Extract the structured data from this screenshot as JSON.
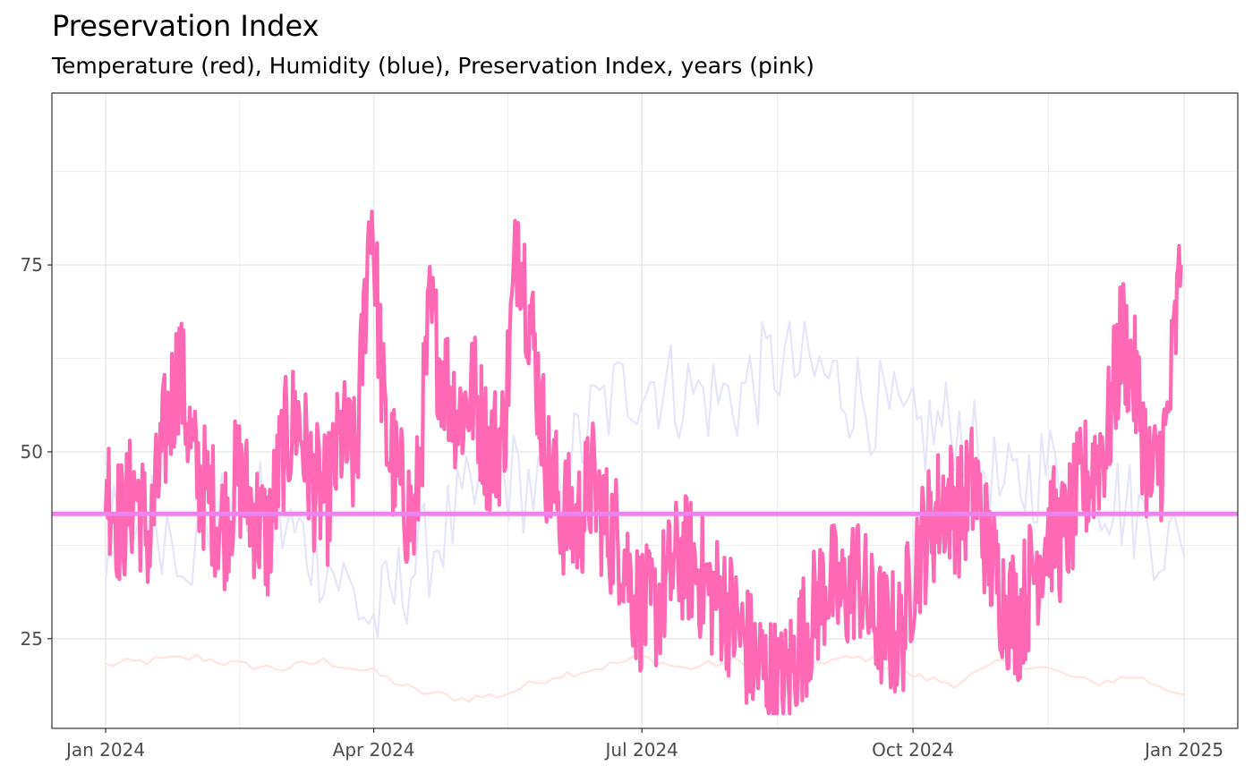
{
  "chart_data": {
    "type": "line",
    "title": "Preservation Index",
    "subtitle": "Temperature (red), Humidity (blue), Preservation Index, years (pink)",
    "xlabel": "",
    "ylabel": "",
    "xlim": [
      "2024-01-01",
      "2025-01-01"
    ],
    "ylim": [
      13,
      98
    ],
    "x_ticks": [
      {
        "date": "2024-01-01",
        "label": "Jan 2024"
      },
      {
        "date": "2024-04-01",
        "label": "Apr 2024"
      },
      {
        "date": "2024-07-01",
        "label": "Jul 2024"
      },
      {
        "date": "2024-10-01",
        "label": "Oct 2024"
      },
      {
        "date": "2025-01-01",
        "label": "Jan 2025"
      }
    ],
    "y_ticks": [
      25,
      50,
      75
    ],
    "grid": true,
    "legend": "none",
    "reference_line": {
      "y": 41.7,
      "color": "#ee82ee"
    },
    "colors": {
      "temperature": "#ffe4e1",
      "humidity": "#e6e6fa",
      "preservation_index": "#ff69b4",
      "reference": "#ee82ee",
      "grid": "#ebebeb",
      "panel_border": "#333333"
    },
    "series": [
      {
        "key": "temperature",
        "x": [
          "2024-01-01",
          "2024-01-15",
          "2024-02-01",
          "2024-02-15",
          "2024-03-01",
          "2024-03-15",
          "2024-04-01",
          "2024-04-15",
          "2024-05-01",
          "2024-05-15",
          "2024-06-01",
          "2024-06-15",
          "2024-07-01",
          "2024-07-15",
          "2024-08-01",
          "2024-08-15",
          "2024-09-01",
          "2024-09-15",
          "2024-10-01",
          "2024-10-15",
          "2024-11-01",
          "2024-11-15",
          "2024-12-01",
          "2024-12-15",
          "2025-01-01"
        ],
        "y": [
          21.5,
          22.0,
          22.5,
          21.5,
          21.0,
          22.0,
          20.5,
          18.0,
          17.0,
          17.5,
          20.0,
          21.0,
          22.5,
          21.0,
          22.0,
          21.0,
          22.0,
          22.5,
          20.0,
          19.0,
          22.0,
          21.0,
          19.0,
          20.0,
          17.5
        ]
      },
      {
        "key": "humidity",
        "x": [
          "2024-01-01",
          "2024-01-15",
          "2024-02-01",
          "2024-02-15",
          "2024-03-01",
          "2024-03-15",
          "2024-04-01",
          "2024-04-15",
          "2024-05-01",
          "2024-05-15",
          "2024-06-01",
          "2024-06-15",
          "2024-07-01",
          "2024-07-15",
          "2024-08-01",
          "2024-08-15",
          "2024-09-01",
          "2024-09-15",
          "2024-10-01",
          "2024-10-15",
          "2024-11-01",
          "2024-11-15",
          "2024-12-01",
          "2024-12-15",
          "2025-01-01"
        ],
        "y": [
          38,
          42,
          37,
          44,
          40,
          36,
          27,
          35,
          42,
          47,
          44,
          55,
          60,
          58,
          57,
          62,
          60,
          57,
          52,
          54,
          44,
          48,
          46,
          42,
          36
        ]
      },
      {
        "key": "preservation_index",
        "x": [
          "2024-01-01",
          "2024-01-06",
          "2024-01-11",
          "2024-01-16",
          "2024-01-21",
          "2024-01-26",
          "2024-01-31",
          "2024-02-05",
          "2024-02-10",
          "2024-02-15",
          "2024-02-20",
          "2024-02-25",
          "2024-03-01",
          "2024-03-06",
          "2024-03-11",
          "2024-03-16",
          "2024-03-21",
          "2024-03-26",
          "2024-03-31",
          "2024-04-05",
          "2024-04-10",
          "2024-04-15",
          "2024-04-20",
          "2024-04-25",
          "2024-04-30",
          "2024-05-05",
          "2024-05-10",
          "2024-05-15",
          "2024-05-20",
          "2024-05-25",
          "2024-05-30",
          "2024-06-04",
          "2024-06-09",
          "2024-06-14",
          "2024-06-19",
          "2024-06-24",
          "2024-06-29",
          "2024-07-04",
          "2024-07-09",
          "2024-07-14",
          "2024-07-19",
          "2024-07-24",
          "2024-07-29",
          "2024-08-03",
          "2024-08-08",
          "2024-08-13",
          "2024-08-18",
          "2024-08-23",
          "2024-08-28",
          "2024-09-02",
          "2024-09-07",
          "2024-09-12",
          "2024-09-17",
          "2024-09-22",
          "2024-09-27",
          "2024-10-02",
          "2024-10-07",
          "2024-10-12",
          "2024-10-17",
          "2024-10-22",
          "2024-10-27",
          "2024-11-01",
          "2024-11-06",
          "2024-11-11",
          "2024-11-16",
          "2024-11-21",
          "2024-11-26",
          "2024-12-01",
          "2024-12-06",
          "2024-12-11",
          "2024-12-16",
          "2024-12-21",
          "2024-12-26",
          "2024-12-31"
        ],
        "y": [
          47,
          40,
          45,
          38,
          52,
          62,
          48,
          44,
          40,
          47,
          42,
          38,
          50,
          55,
          46,
          43,
          52,
          48,
          84,
          52,
          45,
          40,
          68,
          60,
          55,
          58,
          50,
          52,
          80,
          65,
          48,
          42,
          40,
          46,
          40,
          38,
          30,
          28,
          32,
          36,
          35,
          31,
          30,
          26,
          22,
          20,
          18,
          24,
          28,
          33,
          30,
          34,
          28,
          26,
          25,
          36,
          40,
          44,
          42,
          46,
          36,
          30,
          28,
          34,
          40,
          38,
          44,
          48,
          52,
          66,
          58,
          45,
          52,
          75
        ]
      }
    ]
  }
}
